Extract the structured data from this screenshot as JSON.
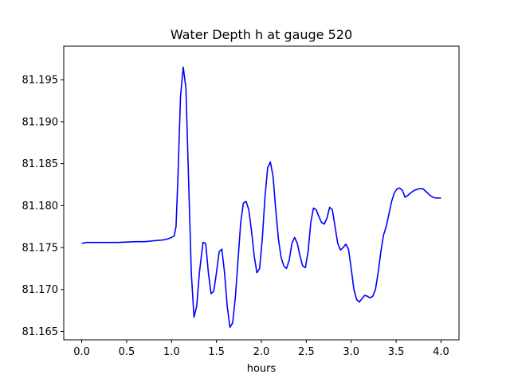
{
  "chart_data": {
    "type": "line",
    "title": "Water Depth h at gauge 520",
    "xlabel": "hours",
    "ylabel": "",
    "xlim": [
      -0.2,
      4.2
    ],
    "ylim": [
      81.164,
      81.199
    ],
    "x_ticks": [
      0.0,
      0.5,
      1.0,
      1.5,
      2.0,
      2.5,
      3.0,
      3.5,
      4.0
    ],
    "x_tick_labels": [
      "0.0",
      "0.5",
      "1.0",
      "1.5",
      "2.0",
      "2.5",
      "3.0",
      "3.5",
      "4.0"
    ],
    "y_ticks": [
      81.165,
      81.17,
      81.175,
      81.18,
      81.185,
      81.19,
      81.195
    ],
    "y_tick_labels": [
      "81.165",
      "81.170",
      "81.175",
      "81.180",
      "81.185",
      "81.190",
      "81.195"
    ],
    "grid": false,
    "series": [
      {
        "color": "#0000ff",
        "x": [
          0.0,
          0.05,
          0.2,
          0.4,
          0.6,
          0.7,
          0.8,
          0.9,
          0.95,
          1.0,
          1.03,
          1.05,
          1.07,
          1.1,
          1.13,
          1.16,
          1.19,
          1.22,
          1.25,
          1.28,
          1.31,
          1.35,
          1.38,
          1.41,
          1.44,
          1.47,
          1.5,
          1.53,
          1.56,
          1.59,
          1.62,
          1.65,
          1.68,
          1.71,
          1.74,
          1.77,
          1.8,
          1.83,
          1.86,
          1.89,
          1.92,
          1.95,
          1.98,
          2.01,
          2.04,
          2.07,
          2.1,
          2.13,
          2.16,
          2.19,
          2.22,
          2.25,
          2.28,
          2.31,
          2.34,
          2.37,
          2.4,
          2.43,
          2.46,
          2.49,
          2.52,
          2.55,
          2.58,
          2.61,
          2.64,
          2.67,
          2.7,
          2.73,
          2.76,
          2.79,
          2.82,
          2.85,
          2.88,
          2.91,
          2.94,
          2.97,
          3.0,
          3.03,
          3.06,
          3.09,
          3.12,
          3.15,
          3.18,
          3.21,
          3.24,
          3.27,
          3.3,
          3.33,
          3.36,
          3.39,
          3.42,
          3.45,
          3.48,
          3.51,
          3.54,
          3.57,
          3.6,
          3.63,
          3.66,
          3.7,
          3.75,
          3.8,
          3.85,
          3.88,
          3.91,
          3.94,
          3.97,
          4.0
        ],
        "values": [
          81.1755,
          81.1756,
          81.1756,
          81.1756,
          81.1757,
          81.1757,
          81.1758,
          81.1759,
          81.176,
          81.1762,
          81.1764,
          81.1775,
          81.183,
          81.193,
          81.1965,
          81.194,
          81.183,
          81.172,
          81.1667,
          81.168,
          81.172,
          81.1756,
          81.1755,
          81.172,
          81.1695,
          81.1698,
          81.172,
          81.1745,
          81.1748,
          81.172,
          81.168,
          81.1655,
          81.166,
          81.169,
          81.1735,
          81.178,
          81.1803,
          81.1805,
          81.1795,
          81.177,
          81.174,
          81.172,
          81.1725,
          81.176,
          81.181,
          81.1845,
          81.1852,
          81.1835,
          81.1795,
          81.176,
          81.1738,
          81.1728,
          81.1725,
          81.1735,
          81.1755,
          81.1762,
          81.1755,
          81.174,
          81.1728,
          81.1726,
          81.1745,
          81.178,
          81.1797,
          81.1795,
          81.1787,
          81.178,
          81.1778,
          81.1785,
          81.1798,
          81.1795,
          81.1775,
          81.1755,
          81.1747,
          81.175,
          81.1754,
          81.1748,
          81.1725,
          81.17,
          81.1688,
          81.1685,
          81.1689,
          81.1693,
          81.1692,
          81.169,
          81.1692,
          81.17,
          81.172,
          81.1745,
          81.1765,
          81.1775,
          81.179,
          81.1805,
          81.1815,
          81.182,
          81.1821,
          81.1818,
          81.181,
          81.1812,
          81.1815,
          81.1818,
          81.182,
          81.182,
          81.1815,
          81.1812,
          81.181,
          81.1809,
          81.1809,
          81.1809
        ]
      }
    ]
  }
}
